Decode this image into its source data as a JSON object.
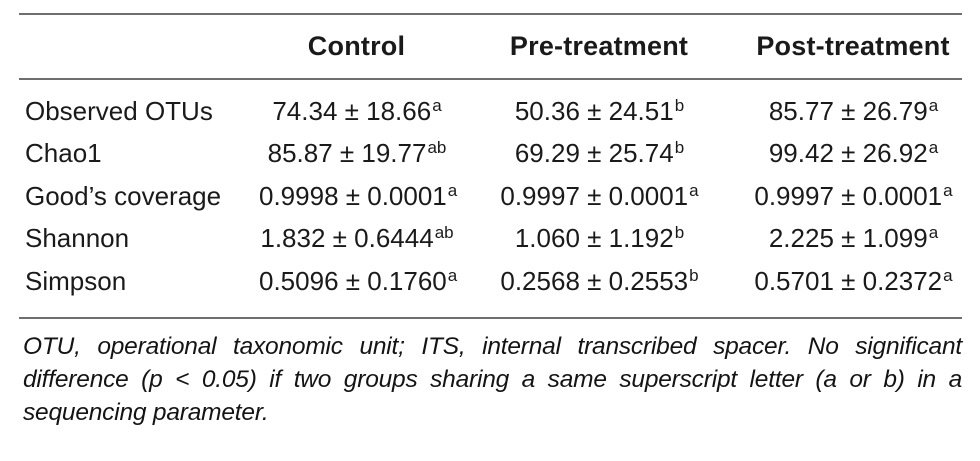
{
  "table": {
    "columns": [
      "Control",
      "Pre-treatment",
      "Post-treatment"
    ],
    "rows": [
      {
        "label": "Observed OTUs",
        "control": {
          "value": "74.34 ± 18.66",
          "sup": "a"
        },
        "pre": {
          "value": "50.36 ± 24.51",
          "sup": "b"
        },
        "post": {
          "value": "85.77 ± 26.79",
          "sup": "a"
        }
      },
      {
        "label": "Chao1",
        "control": {
          "value": "85.87 ± 19.77",
          "sup": "ab"
        },
        "pre": {
          "value": "69.29 ± 25.74",
          "sup": "b"
        },
        "post": {
          "value": "99.42 ± 26.92",
          "sup": "a"
        }
      },
      {
        "label": "Good’s coverage",
        "control": {
          "value": "0.9998 ± 0.0001",
          "sup": "a"
        },
        "pre": {
          "value": "0.9997 ± 0.0001",
          "sup": "a"
        },
        "post": {
          "value": "0.9997 ± 0.0001",
          "sup": "a"
        }
      },
      {
        "label": "Shannon",
        "control": {
          "value": "1.832 ± 0.6444",
          "sup": "ab"
        },
        "pre": {
          "value": "1.060 ± 1.192",
          "sup": "b"
        },
        "post": {
          "value": "2.225 ± 1.099",
          "sup": "a"
        }
      },
      {
        "label": "Simpson",
        "control": {
          "value": "0.5096 ± 0.1760",
          "sup": "a"
        },
        "pre": {
          "value": "0.2568 ± 0.2553",
          "sup": "b"
        },
        "post": {
          "value": "0.5701 ± 0.2372",
          "sup": "a"
        }
      }
    ]
  },
  "footnote": {
    "text": "OTU, operational taxonomic unit; ITS, internal transcribed spacer. No significant difference (p < 0.05) if two groups sharing a same superscript letter (a or b) in a sequencing parameter."
  },
  "colors": {
    "text": "#1a1a1a",
    "rule": "#6e6e6e"
  }
}
